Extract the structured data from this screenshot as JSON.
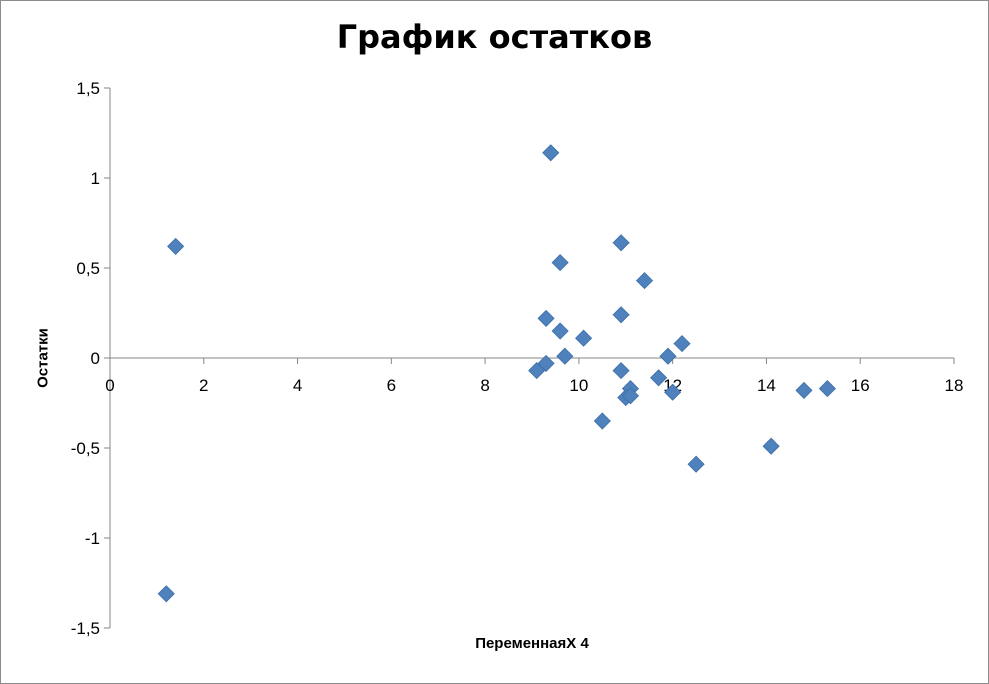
{
  "chart_data": {
    "type": "scatter",
    "title": "График остатков",
    "xlabel": "ПеременнаяX 4",
    "ylabel": "Остатки",
    "xlim": [
      0,
      18
    ],
    "ylim": [
      -1.5,
      1.5
    ],
    "x_ticks": [
      "0",
      "2",
      "4",
      "6",
      "8",
      "10",
      "12",
      "14",
      "16",
      "18"
    ],
    "y_ticks": [
      "1,5",
      "1",
      "0,5",
      "0",
      "-0,5",
      "-1",
      "-1,5"
    ],
    "grid": false,
    "legend": "none",
    "marker": "diamond",
    "color": "#4F81BD",
    "points": [
      {
        "x": 1.4,
        "y": 0.62
      },
      {
        "x": 1.2,
        "y": -1.31
      },
      {
        "x": 9.4,
        "y": 1.14
      },
      {
        "x": 10.9,
        "y": 0.64
      },
      {
        "x": 9.6,
        "y": 0.53
      },
      {
        "x": 11.4,
        "y": 0.43
      },
      {
        "x": 10.9,
        "y": 0.24
      },
      {
        "x": 9.3,
        "y": 0.22
      },
      {
        "x": 9.6,
        "y": 0.15
      },
      {
        "x": 10.1,
        "y": 0.11
      },
      {
        "x": 12.2,
        "y": 0.08
      },
      {
        "x": 9.7,
        "y": 0.01
      },
      {
        "x": 11.9,
        "y": 0.01
      },
      {
        "x": 9.3,
        "y": -0.03
      },
      {
        "x": 9.1,
        "y": -0.07
      },
      {
        "x": 10.9,
        "y": -0.07
      },
      {
        "x": 11.7,
        "y": -0.11
      },
      {
        "x": 11.1,
        "y": -0.17
      },
      {
        "x": 12.0,
        "y": -0.19
      },
      {
        "x": 14.8,
        "y": -0.18
      },
      {
        "x": 15.3,
        "y": -0.17
      },
      {
        "x": 11.0,
        "y": -0.22
      },
      {
        "x": 11.1,
        "y": -0.21
      },
      {
        "x": 10.5,
        "y": -0.35
      },
      {
        "x": 14.1,
        "y": -0.49
      },
      {
        "x": 12.5,
        "y": -0.59
      }
    ]
  }
}
